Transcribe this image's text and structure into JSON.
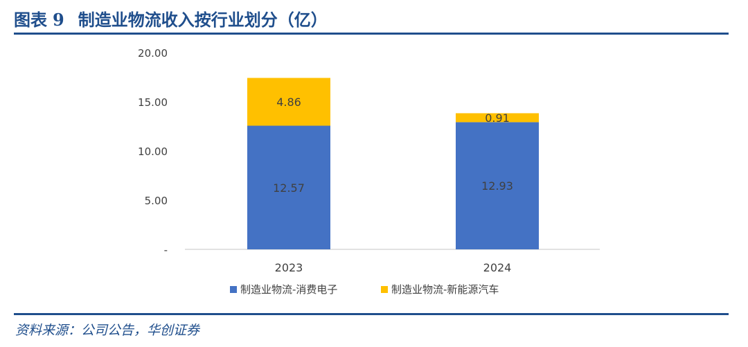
{
  "header": {
    "label": "图表",
    "number": "9",
    "title": "制造业物流收入按行业划分（亿）"
  },
  "footer": {
    "source": "资料来源：公司公告，华创证券"
  },
  "colors": {
    "series_1": "#4472c4",
    "series_2": "#ffc000",
    "axis": "#d9d9d9",
    "accent": "#1f4e8c"
  },
  "chart_data": {
    "type": "bar",
    "stacked": true,
    "categories": [
      "2023",
      "2024"
    ],
    "series": [
      {
        "name": "制造业物流-消费电子",
        "values": [
          12.57,
          12.93
        ],
        "labels": [
          "12.57",
          "12.93"
        ]
      },
      {
        "name": "制造业物流-新能源汽车",
        "values": [
          4.86,
          0.91
        ],
        "labels": [
          "4.86",
          "0.91"
        ]
      }
    ],
    "ylim": [
      0,
      20
    ],
    "yticks": [
      0,
      5,
      10,
      15,
      20
    ],
    "ytick_labels": [
      "-",
      "5.00",
      "10.00",
      "15.00",
      "20.00"
    ],
    "grid": false,
    "legend_position": "bottom"
  }
}
